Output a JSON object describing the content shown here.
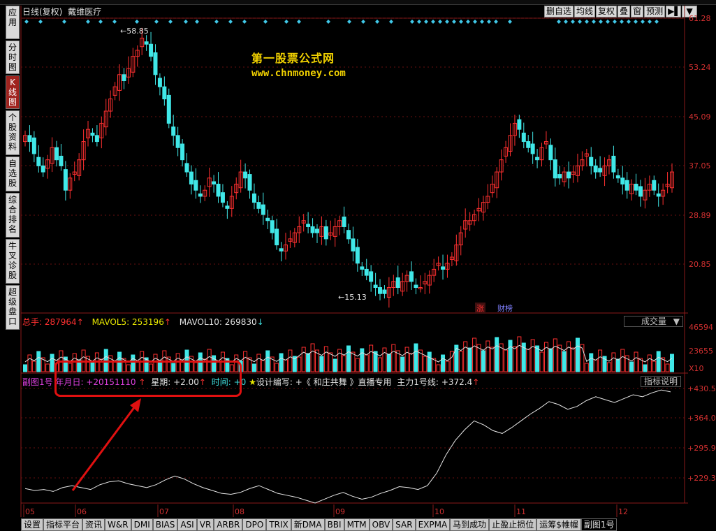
{
  "window": {
    "title": "日线(复权)",
    "stock_name": "戴维医疗"
  },
  "sidebar": {
    "items": [
      {
        "label": "应用"
      },
      {
        "label": "分时图"
      },
      {
        "label": "K线图"
      },
      {
        "label": "个股资料"
      },
      {
        "label": "自选股"
      },
      {
        "label": "综合排名"
      },
      {
        "label": "牛叉诊股"
      },
      {
        "label": "超级盘口"
      }
    ]
  },
  "toolbar": {
    "items": [
      "删自选",
      "均线",
      "复权",
      "叠",
      "窗",
      "预测"
    ],
    "arrow": "▶▌",
    "menu": "▼"
  },
  "watermark": {
    "line1": "第一股票公式网",
    "line2": "www.chnmoney.com"
  },
  "price_axis": [
    "61.28",
    "53.24",
    "45.09",
    "37.05",
    "28.89",
    "20.85"
  ],
  "price_marks": {
    "high": "58.85",
    "low": "15.13"
  },
  "tags": {
    "zhang": "涨",
    "cai": "财榜"
  },
  "volume_legend": {
    "label": "总手:",
    "value": "287964",
    "mavol5_label": "MAVOL5:",
    "mavol5": "253196",
    "mavol10_label": "MAVOL10:",
    "mavol10": "269830"
  },
  "volume_axis": [
    "46594",
    "23655",
    "X10"
  ],
  "volume_dropdown": "成交量",
  "indicator_legend": {
    "name": "副图1号",
    "date_label": "年月日:",
    "date_value": "+20151110",
    "week_label": "星期:",
    "week_value": "+2.00",
    "time_label": "时间:",
    "time_value": "+0",
    "design_text": "设计编写: +《 和庄共舞 》直播专用",
    "main_label": "主力1号线:",
    "main_value": "+372.4"
  },
  "indicator_axis": [
    "+430.5",
    "+364.0",
    "+295.9",
    "+229.3"
  ],
  "explain_button": "指标说明",
  "month_axis": [
    "05",
    "06",
    "07",
    "08",
    "09",
    "10",
    "11",
    "12"
  ],
  "bottom_tabs": [
    "设置",
    "指标平台",
    "资讯",
    "W&R",
    "DMI",
    "BIAS",
    "ASI",
    "VR",
    "ARBR",
    "DPO",
    "TRIX",
    "新DMA",
    "BBI",
    "MTM",
    "OBV",
    "SAR",
    "EXPMA",
    "马到成功",
    "止盈止损位",
    "运筹$帷幄",
    "副图1号"
  ],
  "active_tab": "副图1号",
  "colors": {
    "up": "#ff3030",
    "down": "#40e8e8",
    "grid": "#6a1010",
    "axis_text": "#d23030",
    "ma_line": "#e0e0e0",
    "annotation": "#e01010"
  }
}
